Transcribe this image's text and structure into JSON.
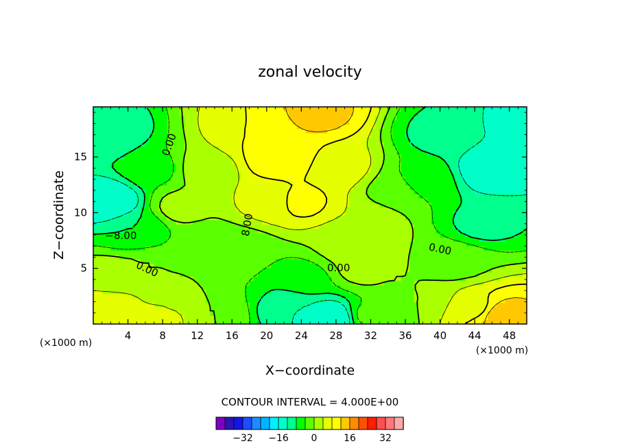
{
  "chart_data": {
    "type": "heatmap",
    "title": "zonal velocity",
    "xlabel": "X−coordinate",
    "ylabel": "Z−coordinate",
    "x_unit_left": "(×1000 m)",
    "x_unit_right": "(×1000 m)",
    "xlim": [
      0,
      50
    ],
    "ylim": [
      0,
      19.5
    ],
    "x_ticks": [
      {
        "value": 4,
        "label": "4"
      },
      {
        "value": 8,
        "label": "8"
      },
      {
        "value": 12,
        "label": "12"
      },
      {
        "value": 16,
        "label": "16"
      },
      {
        "value": 20,
        "label": "20"
      },
      {
        "value": 24,
        "label": "24"
      },
      {
        "value": 28,
        "label": "28"
      },
      {
        "value": 32,
        "label": "32"
      },
      {
        "value": 36,
        "label": "36"
      },
      {
        "value": 40,
        "label": "40"
      },
      {
        "value": 44,
        "label": "44"
      },
      {
        "value": 48,
        "label": "48"
      }
    ],
    "y_ticks": [
      {
        "value": 5,
        "label": "5"
      },
      {
        "value": 10,
        "label": "10"
      },
      {
        "value": 15,
        "label": "15"
      }
    ],
    "contour_interval_text": "CONTOUR INTERVAL = 4.000E+00",
    "contour_labels": [
      {
        "text": "0.00",
        "x": 8.8,
        "z": 16.1,
        "angle": -70
      },
      {
        "text": "−8.00",
        "x": 3.2,
        "z": 7.9,
        "angle": 0
      },
      {
        "text": "8.00",
        "x": 17.8,
        "z": 8.9,
        "angle": -80
      },
      {
        "text": "0.00",
        "x": 6.2,
        "z": 4.9,
        "angle": 25
      },
      {
        "text": "0.00",
        "x": 28.3,
        "z": 5.0,
        "angle": 0
      },
      {
        "text": "0.00",
        "x": 40.0,
        "z": 6.7,
        "angle": 12
      }
    ],
    "colorbar": {
      "colors": [
        "#7f00bf",
        "#2a14b4",
        "#1414e6",
        "#1e4cff",
        "#1e8cff",
        "#00b4ff",
        "#00f0ff",
        "#00ffc8",
        "#00ff8c",
        "#00ff00",
        "#5aff00",
        "#aaff00",
        "#e6ff00",
        "#ffff00",
        "#ffc800",
        "#ff8c00",
        "#ff5000",
        "#ff1e00",
        "#ff5050",
        "#ff7878",
        "#ffaaaa"
      ],
      "ticks": [
        {
          "value": -32,
          "label": "−32"
        },
        {
          "value": -16,
          "label": "−16"
        },
        {
          "value": 0,
          "label": "0"
        },
        {
          "value": 16,
          "label": "16"
        },
        {
          "value": 32,
          "label": "32"
        }
      ]
    },
    "field_points": [
      [
        2,
        17,
        -11
      ],
      [
        7,
        14,
        -5
      ],
      [
        2,
        11,
        -16
      ],
      [
        5,
        8.5,
        -8
      ],
      [
        10,
        10.5,
        1
      ],
      [
        13,
        14,
        2
      ],
      [
        18,
        17,
        8
      ],
      [
        21.5,
        15,
        12
      ],
      [
        26,
        19,
        13
      ],
      [
        24,
        11,
        9
      ],
      [
        28.5,
        14,
        6
      ],
      [
        31,
        9,
        4
      ],
      [
        34.5,
        12,
        -1
      ],
      [
        38,
        13,
        -6
      ],
      [
        40,
        17,
        -9
      ],
      [
        46,
        14,
        -16
      ],
      [
        45,
        9,
        -9
      ],
      [
        49,
        18,
        -13
      ],
      [
        42,
        5.5,
        -1
      ],
      [
        38,
        2.5,
        0
      ],
      [
        27.5,
        0.5,
        -16
      ],
      [
        22.5,
        1.5,
        -12
      ],
      [
        16,
        3.5,
        -4
      ],
      [
        10.5,
        2.5,
        1
      ],
      [
        6.5,
        5,
        0
      ],
      [
        2.5,
        4,
        3
      ],
      [
        2,
        1.5,
        6
      ],
      [
        13,
        7,
        -2
      ],
      [
        17,
        6.5,
        -3
      ],
      [
        31,
        5,
        1
      ],
      [
        35,
        4.5,
        0
      ],
      [
        47,
        0.8,
        14
      ],
      [
        44,
        1.5,
        7
      ],
      [
        32,
        0.8,
        -3
      ],
      [
        8,
        0.5,
        5
      ],
      [
        14,
        1,
        0
      ],
      [
        24,
        4,
        -6
      ],
      [
        20,
        11,
        5
      ],
      [
        29,
        7,
        1
      ]
    ],
    "grid": false
  }
}
